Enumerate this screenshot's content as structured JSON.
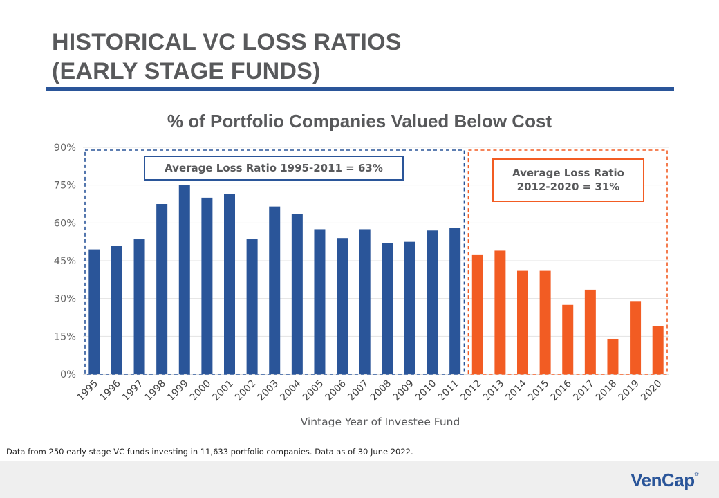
{
  "slide": {
    "title_line1": "HISTORICAL VC LOSS RATIOS",
    "title_line2": "(EARLY STAGE FUNDS)",
    "footnote": "Data from 250 early stage VC funds investing in 11,633 portfolio companies.  Data as of 30 June 2022.",
    "logo": "VenCap",
    "logo_mark": "®"
  },
  "colors": {
    "blue": "#2a5599",
    "orange": "#f25c23",
    "title_gray": "#58595b"
  },
  "chart_data": {
    "type": "bar",
    "title": "% of Portfolio Companies Valued Below Cost",
    "xlabel": "Vintage Year of Investee Fund",
    "ylabel": "",
    "ylim": [
      0,
      90
    ],
    "yticks": [
      0,
      15,
      30,
      45,
      60,
      75,
      90
    ],
    "ytick_labels": [
      "0%",
      "15%",
      "30%",
      "45%",
      "60%",
      "75%",
      "90%"
    ],
    "grid": true,
    "categories": [
      "1995",
      "1996",
      "1997",
      "1998",
      "1999",
      "2000",
      "2001",
      "2002",
      "2003",
      "2004",
      "2005",
      "2006",
      "2007",
      "2008",
      "2009",
      "2010",
      "2011",
      "2012",
      "2013",
      "2014",
      "2015",
      "2016",
      "2017",
      "2018",
      "2019",
      "2020"
    ],
    "values": [
      49.5,
      51,
      53.5,
      67.5,
      75,
      70,
      71.5,
      53.5,
      66.5,
      63.5,
      57.5,
      54,
      57.5,
      52,
      52.5,
      57,
      58,
      47.5,
      49,
      41,
      41,
      27.5,
      33.5,
      14,
      29,
      19
    ],
    "bar_colors": [
      "blue",
      "blue",
      "blue",
      "blue",
      "blue",
      "blue",
      "blue",
      "blue",
      "blue",
      "blue",
      "blue",
      "blue",
      "blue",
      "blue",
      "blue",
      "blue",
      "blue",
      "orange",
      "orange",
      "orange",
      "orange",
      "orange",
      "orange",
      "orange",
      "orange",
      "orange"
    ],
    "annotations": [
      {
        "text": "Average Loss Ratio 1995-2011 = 63%",
        "color": "blue",
        "range": [
          "1995",
          "2011"
        ]
      },
      {
        "text": "Average Loss Ratio\n2012-2020 = 31%",
        "color": "orange",
        "range": [
          "2012",
          "2020"
        ]
      }
    ]
  }
}
